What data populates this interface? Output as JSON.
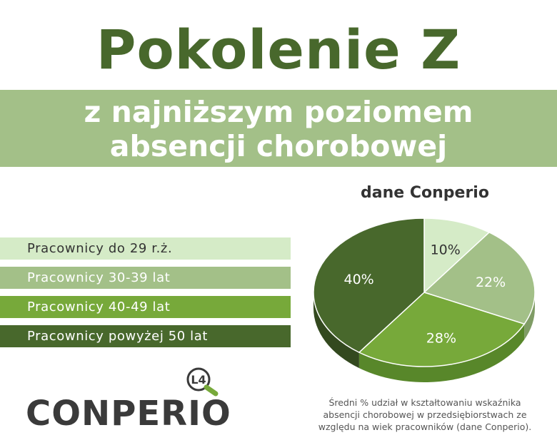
{
  "title": "Pokolenie Z",
  "subtitle": {
    "line1": "z najniższym poziomem",
    "line2": "absencji chorobowej"
  },
  "source_label": "dane Conperio",
  "colors": {
    "title": "#48682c",
    "banner": "#a3c088",
    "series": [
      "#d5ebc7",
      "#a3c088",
      "#77a93a",
      "#48682c"
    ]
  },
  "chart_data": {
    "type": "pie",
    "categories": [
      "Pracownicy do 29 r.ż.",
      "Pracownicy 30-39 lat",
      "Pracownicy 40-49 lat",
      "Pracownicy powyżej 50 lat"
    ],
    "values": [
      10,
      22,
      28,
      40
    ],
    "value_labels": [
      "10%",
      "22%",
      "28%",
      "40%"
    ],
    "legend": "left"
  },
  "caption": {
    "line1": "Średni % udział w kształtowaniu wskaźnika",
    "line2": "absencji chorobowej w przedsiębiorstwach ze",
    "line3": "względu na wiek pracowników (dane Conperio)."
  },
  "logo": {
    "badge": "L4",
    "text": "CONPERIO",
    "icon": "magnifier-icon"
  }
}
